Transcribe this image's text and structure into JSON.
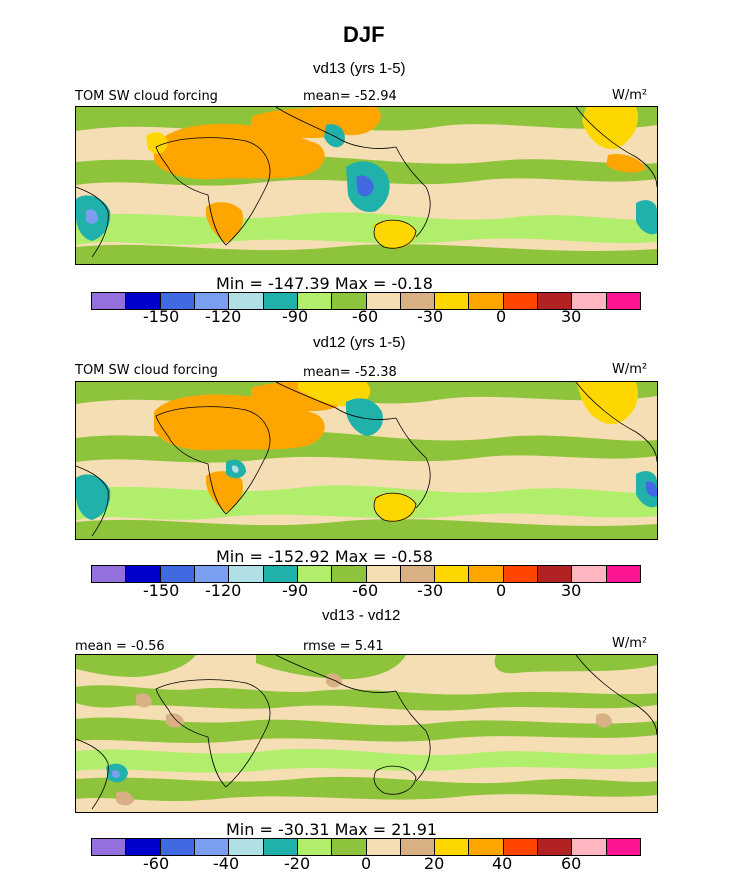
{
  "figure": {
    "title": "DJF"
  },
  "panels": [
    {
      "subtitle": "vd13 (yrs 1-5)",
      "left_label": "TOM SW cloud forcing",
      "center_label": "mean=  -52.94",
      "units": "W/m²",
      "stats": "Min = -147.39  Max =  -0.18",
      "ticks": [
        "-150",
        "-120",
        "-90",
        "-60",
        "-30",
        "0",
        "30"
      ]
    },
    {
      "subtitle": "vd12 (yrs 1-5)",
      "left_label": "TOM SW cloud forcing",
      "center_label": "mean=  -52.38",
      "units": "W/m²",
      "stats": "Min = -152.92  Max =  -0.58",
      "ticks": [
        "-150",
        "-120",
        "-90",
        "-60",
        "-30",
        "0",
        "30"
      ]
    },
    {
      "subtitle": "vd13 - vd12",
      "left_label": "mean =  -0.56",
      "center_label": "rmse =    5.41",
      "units": "W/m²",
      "stats": "Min = -30.31  Max =  21.91",
      "ticks": [
        "-60",
        "-40",
        "-20",
        "0",
        "20",
        "40",
        "60"
      ]
    }
  ],
  "colorbar_colors": [
    "#9370db",
    "#0000cd",
    "#4169e1",
    "#7b9ff0",
    "#b0e0e6",
    "#20b2aa",
    "#b0ee6c",
    "#8dc43c",
    "#f5deb3",
    "#d8b083",
    "#ffd700",
    "#ffa500",
    "#ff4500",
    "#b22222",
    "#ffb6c1",
    "#ff1493"
  ],
  "chart_data": [
    {
      "type": "heatmap",
      "title": "vd13 (yrs 1-5)",
      "variable": "TOM SW cloud forcing",
      "units": "W/m2",
      "mean": -52.94,
      "min": -147.39,
      "max": -0.18,
      "contour_ticks": [
        -150,
        -120,
        -90,
        -60,
        -30,
        0,
        30
      ]
    },
    {
      "type": "heatmap",
      "title": "vd12 (yrs 1-5)",
      "variable": "TOM SW cloud forcing",
      "units": "W/m2",
      "mean": -52.38,
      "min": -152.92,
      "max": -0.58,
      "contour_ticks": [
        -150,
        -120,
        -90,
        -60,
        -30,
        0,
        30
      ]
    },
    {
      "type": "heatmap",
      "title": "vd13 - vd12",
      "units": "W/m2",
      "mean": -0.56,
      "rmse": 5.41,
      "min": -30.31,
      "max": 21.91,
      "contour_ticks": [
        -60,
        -40,
        -20,
        0,
        20,
        40,
        60
      ]
    }
  ]
}
